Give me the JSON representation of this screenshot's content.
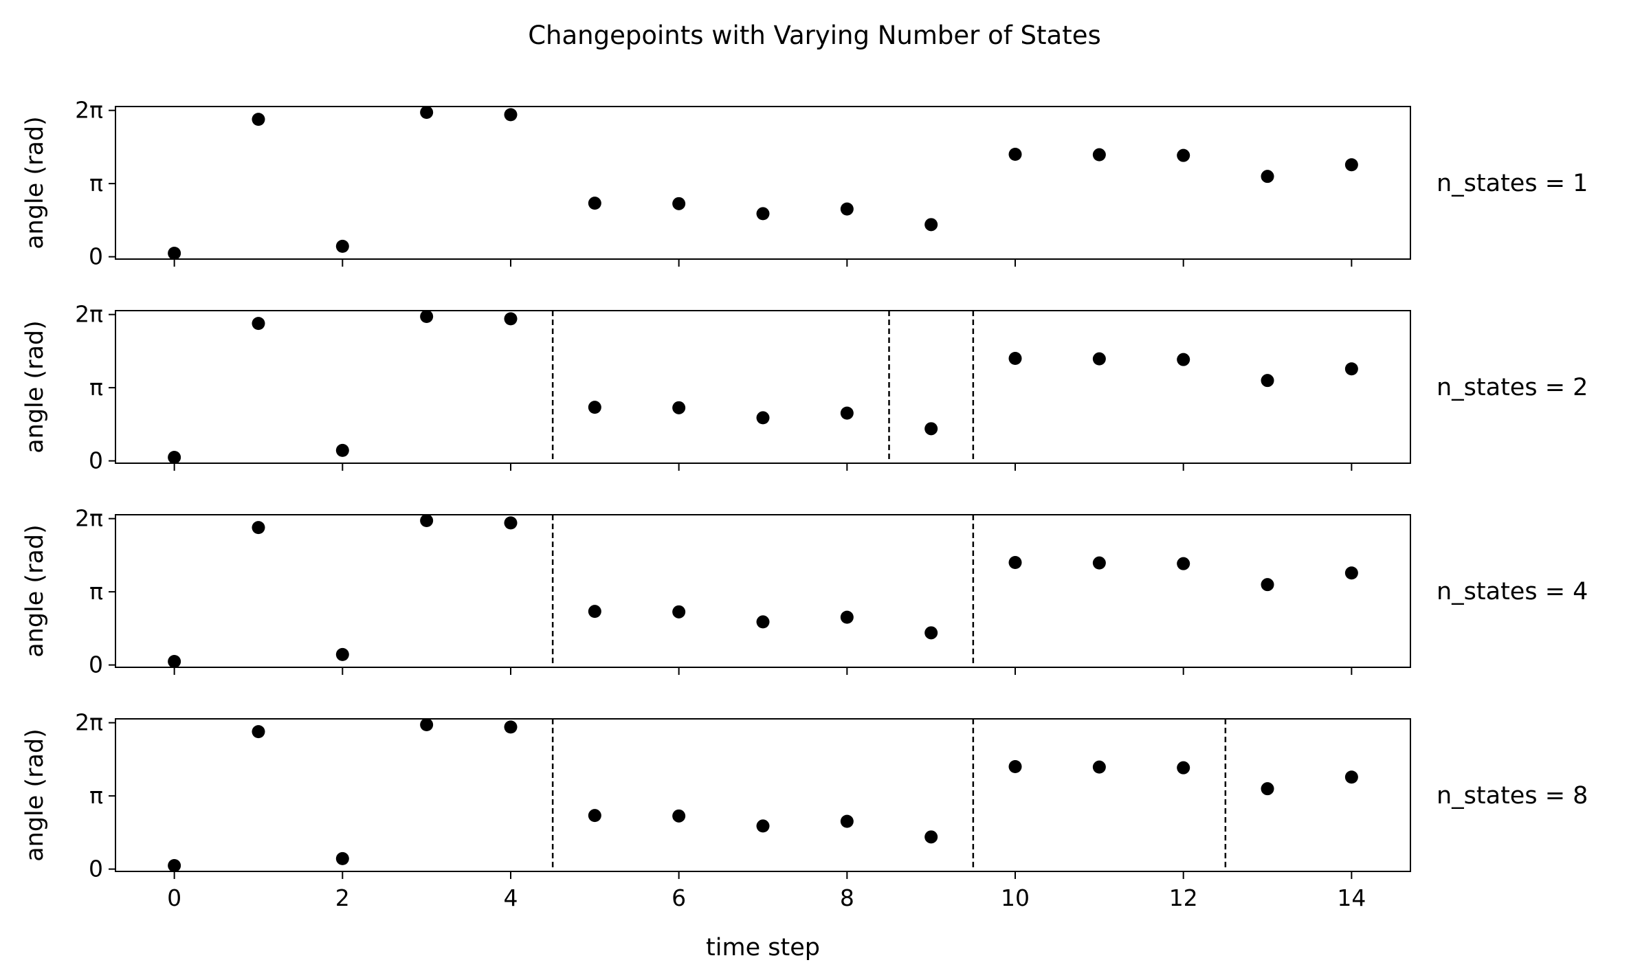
{
  "chart_data": {
    "type": "scatter",
    "title": "Changepoints with Varying Number of States",
    "xlabel": "time step",
    "ylabel": "angle (rad)",
    "xlim": [
      -0.7,
      14.7
    ],
    "ylim": [
      -0.1,
      6.45
    ],
    "x_ticks": [
      0,
      2,
      4,
      6,
      8,
      10,
      12,
      14
    ],
    "x_tick_labels": [
      "0",
      "2",
      "4",
      "6",
      "8",
      "10",
      "12",
      "14"
    ],
    "y_ticks": [
      0,
      3.14159,
      6.28318
    ],
    "y_tick_labels": [
      "0",
      "π",
      "2π"
    ],
    "x": [
      0,
      1,
      2,
      3,
      4,
      5,
      6,
      7,
      8,
      9,
      10,
      11,
      12,
      13,
      14
    ],
    "y": [
      0.15,
      5.9,
      0.45,
      6.2,
      6.1,
      2.3,
      2.28,
      1.85,
      2.05,
      1.38,
      4.4,
      4.38,
      4.35,
      3.45,
      3.95
    ],
    "marker_color": "#000000",
    "changepoint_color": "#000000",
    "changepoint_style": "dashed",
    "grid": false,
    "legend": "none",
    "panels": [
      {
        "label": "n_states = 1",
        "changepoints": []
      },
      {
        "label": "n_states = 2",
        "changepoints": [
          4.5,
          8.5,
          9.5
        ]
      },
      {
        "label": "n_states = 4",
        "changepoints": [
          4.5,
          9.5
        ]
      },
      {
        "label": "n_states = 8",
        "changepoints": [
          4.5,
          9.5,
          12.5
        ]
      }
    ]
  }
}
